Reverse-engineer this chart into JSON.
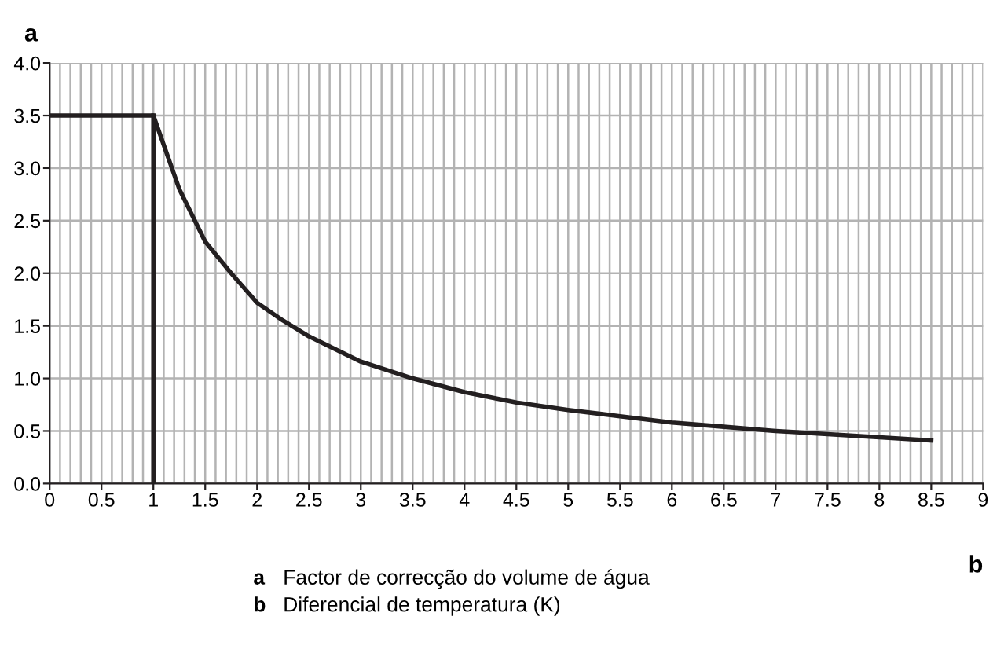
{
  "chart_data": {
    "type": "line",
    "xlabel": "b",
    "ylabel": "a",
    "series": [
      {
        "color": "#231f20",
        "x": [
          0,
          1,
          1.25,
          1.5,
          1.75,
          2,
          2.25,
          2.5,
          3,
          3.5,
          4,
          4.5,
          5,
          5.5,
          6,
          6.5,
          7,
          7.5,
          8,
          8.5
        ],
        "values": [
          3.5,
          3.5,
          2.8,
          2.3,
          2.0,
          1.72,
          1.55,
          1.4,
          1.16,
          1.0,
          0.87,
          0.77,
          0.7,
          0.64,
          0.58,
          0.54,
          0.5,
          0.47,
          0.44,
          0.41
        ]
      },
      {
        "color": "#231f20",
        "x": [
          1,
          1
        ],
        "values": [
          0,
          3.5
        ]
      }
    ],
    "xlim": [
      0,
      9
    ],
    "xticks": [
      0,
      0.5,
      1,
      1.5,
      2,
      2.5,
      3,
      3.5,
      4,
      4.5,
      5,
      5.5,
      6,
      6.5,
      7,
      7.5,
      8,
      8.5,
      9
    ],
    "ylim": [
      0,
      4
    ],
    "yticks": [
      {
        "value": 0,
        "label": "0.0"
      },
      0.5,
      {
        "value": 1,
        "label": "1.0"
      },
      1.5,
      {
        "value": 2,
        "label": "2.0"
      },
      2.5,
      {
        "value": 3,
        "label": "3.0"
      },
      3.5,
      {
        "value": 4,
        "label": "4.0"
      }
    ],
    "grid": true,
    "marker": "none",
    "line_style": "solid",
    "annotations": [
      "a",
      "Factor de correcção do volume de água",
      "b",
      "Diferencial de temperatura (K)"
    ]
  }
}
